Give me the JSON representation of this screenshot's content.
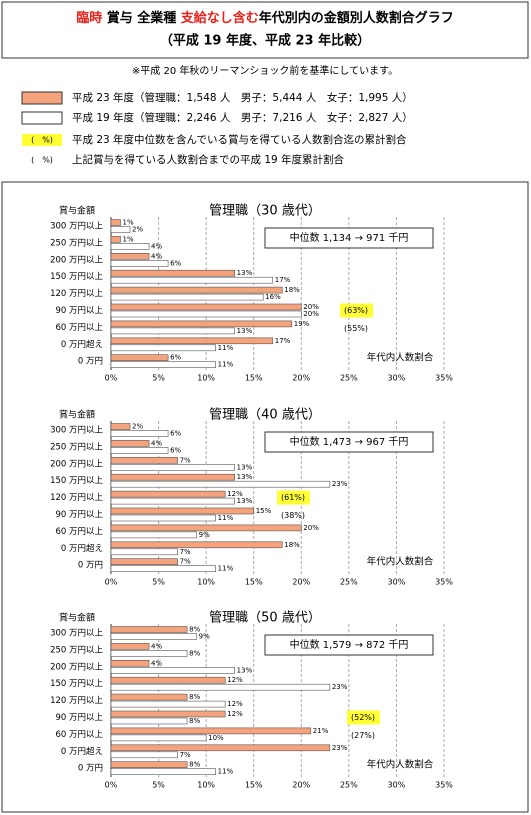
{
  "header": {
    "title": [
      "臨時",
      " 賞与 全業種 ",
      "支給なし含む",
      "年代別内の金額別人数割合グラフ"
    ],
    "subtitle": "（平成 19 年度、平成 23 年比較）",
    "note": "※平成 20 年秋のリーマンショック前を基準にしています。",
    "legend": [
      {
        "text": "平成 23 年度（管理職：1,548 人　男子：5,444 人　女子：1,995 人）",
        "color": "#f4a37c"
      },
      {
        "text": "平成 19 年度（管理職：2,246 人　男子：7,216 人　女子：2,827 人）",
        "color": "#ffffff"
      },
      {
        "symbol": "(　%)",
        "text": "平成 23 年度中位数を含んでいる賞与を得ている人数割合迄の累計割合",
        "color": "#ffff33"
      },
      {
        "symbol": "(　%)",
        "text": "上記賞与を得ている人数割合までの平成 19 年度累計割合"
      }
    ]
  },
  "chart_data": [
    {
      "type": "bar",
      "orientation": "horizontal",
      "title": "管理職（30 歳代）",
      "y_label": "賞与金額",
      "x_label": "年代内人数割合",
      "median_text": "中位数 1,134 → 971 千円",
      "annotations": [
        "(63%)",
        "(55%)"
      ],
      "categories": [
        "300 万円以上",
        "250 万円以上",
        "200 万円以上",
        "150 万円以上",
        "120 万円以上",
        "90 万円以上",
        "60 万円以上",
        "0 万円超え",
        "0 万円"
      ],
      "series": [
        {
          "color": "#f4a37c",
          "values": [
            1,
            1,
            4,
            13,
            18,
            20,
            19,
            17,
            6
          ],
          "value_labels": [
            "1%",
            "1%",
            "4%",
            "13%",
            "18%",
            "20%",
            "19%",
            "17%",
            "6%"
          ]
        },
        {
          "color": "#ffffff",
          "values": [
            2,
            4,
            6,
            17,
            16,
            20,
            13,
            11,
            11
          ],
          "value_labels": [
            "2%",
            "4%",
            "6%",
            "17%",
            "16%",
            "20%",
            "13%",
            "11%",
            "11%"
          ]
        }
      ],
      "xlim": [
        0,
        35
      ],
      "xticks": [
        {
          "value": 0,
          "label": "0%"
        },
        {
          "value": 5,
          "label": "5%"
        },
        {
          "value": 10,
          "label": "10%"
        },
        {
          "value": 15,
          "label": "15%"
        },
        {
          "value": 20,
          "label": "20%"
        },
        {
          "value": 25,
          "label": "25%"
        },
        {
          "value": 30,
          "label": "30%"
        },
        {
          "value": 35,
          "label": "35%"
        }
      ],
      "grid": true
    },
    {
      "type": "bar",
      "orientation": "horizontal",
      "title": "管理職（40 歳代）",
      "y_label": "賞与金額",
      "x_label": "年代内人数割合",
      "median_text": "中位数 1,473 → 967 千円",
      "annotations": [
        "(61%)",
        "(38%)"
      ],
      "categories": [
        "300 万円以上",
        "250 万円以上",
        "200 万円以上",
        "150 万円以上",
        "120 万円以上",
        "90 万円以上",
        "60 万円以上",
        "0 万円超え",
        "0 万円"
      ],
      "series": [
        {
          "color": "#f4a37c",
          "values": [
            2,
            4,
            7,
            13,
            12,
            15,
            20,
            18,
            7
          ],
          "value_labels": [
            "2%",
            "4%",
            "7%",
            "13%",
            "12%",
            "15%",
            "20%",
            "18%",
            "7%"
          ]
        },
        {
          "color": "#ffffff",
          "values": [
            6,
            6,
            13,
            23,
            13,
            11,
            9,
            7,
            11
          ],
          "value_labels": [
            "6%",
            "6%",
            "13%",
            "23%",
            "13%",
            "11%",
            "9%",
            "7%",
            "11%"
          ]
        }
      ],
      "xlim": [
        0,
        35
      ],
      "xticks": [
        {
          "value": 0,
          "label": "0%"
        },
        {
          "value": 5,
          "label": "5%"
        },
        {
          "value": 10,
          "label": "10%"
        },
        {
          "value": 15,
          "label": "15%"
        },
        {
          "value": 20,
          "label": "20%"
        },
        {
          "value": 25,
          "label": "25%"
        },
        {
          "value": 30,
          "label": "30%"
        },
        {
          "value": 35,
          "label": "35%"
        }
      ],
      "grid": true
    },
    {
      "type": "bar",
      "orientation": "horizontal",
      "title": "管理職（50 歳代）",
      "y_label": "賞与金額",
      "x_label": "年代内人数割合",
      "median_text": "中位数 1,579 → 872 千円",
      "annotations": [
        "(52%)",
        "(27%)"
      ],
      "categories": [
        "300 万円以上",
        "250 万円以上",
        "200 万円以上",
        "150 万円以上",
        "120 万円以上",
        "90 万円以上",
        "60 万円以上",
        "0 万円超え",
        "0 万円"
      ],
      "series": [
        {
          "color": "#f4a37c",
          "values": [
            8,
            4,
            4,
            12,
            8,
            12,
            21,
            23,
            8
          ],
          "value_labels": [
            "8%",
            "4%",
            "4%",
            "12%",
            "8%",
            "12%",
            "21%",
            "23%",
            "8%"
          ]
        },
        {
          "color": "#ffffff",
          "values": [
            9,
            8,
            13,
            23,
            12,
            8,
            10,
            7,
            11
          ],
          "value_labels": [
            "9%",
            "8%",
            "13%",
            "23%",
            "12%",
            "8%",
            "10%",
            "7%",
            "11%"
          ]
        }
      ],
      "xlim": [
        0,
        35
      ],
      "xticks": [
        {
          "value": 0,
          "label": "0%"
        },
        {
          "value": 5,
          "label": "5%"
        },
        {
          "value": 10,
          "label": "10%"
        },
        {
          "value": 15,
          "label": "15%"
        },
        {
          "value": 20,
          "label": "20%"
        },
        {
          "value": 25,
          "label": "25%"
        },
        {
          "value": 30,
          "label": "30%"
        },
        {
          "value": 35,
          "label": "35%"
        }
      ],
      "grid": true
    }
  ]
}
